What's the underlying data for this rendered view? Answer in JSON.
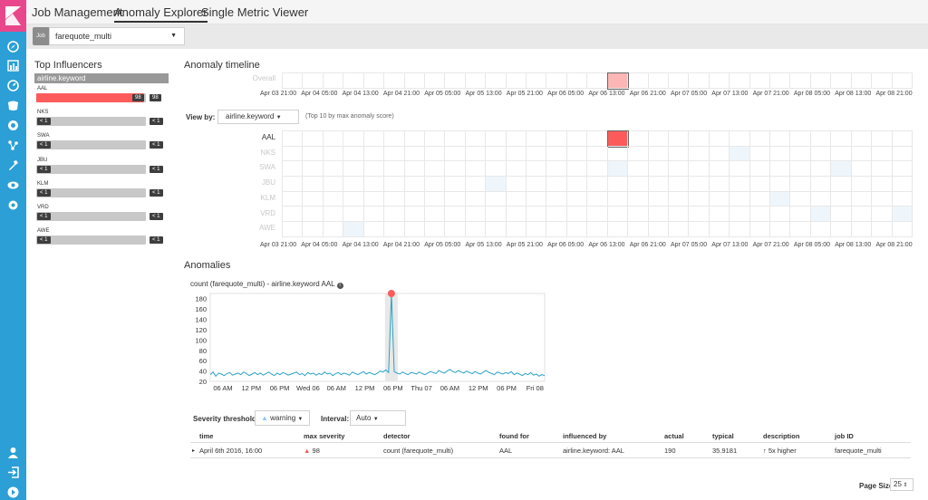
{
  "nav": {
    "icons": [
      "kibana-logo",
      "discover-icon",
      "visualize-icon",
      "dashboard-icon",
      "timelion-icon",
      "machine-learning-icon",
      "graph-icon",
      "dev-tools-icon",
      "monitoring-icon",
      "management-icon",
      "user-icon",
      "logout-icon",
      "collapse-icon"
    ]
  },
  "tabs": [
    {
      "label": "Job Management",
      "active": false
    },
    {
      "label": "Anomaly Explorer",
      "active": true
    },
    {
      "label": "Single Metric Viewer",
      "active": false
    }
  ],
  "job": {
    "badge": "Job",
    "selected": "farequote_multi"
  },
  "influencers": {
    "title": "Top Influencers",
    "field": "airline.keyword",
    "items": [
      {
        "name": "AAL",
        "score_label": "98",
        "max_label": "98",
        "score": 98
      },
      {
        "name": "NKS",
        "score_label": "< 1",
        "max_label": "< 1",
        "score": 0
      },
      {
        "name": "SWA",
        "score_label": "< 1",
        "max_label": "< 1",
        "score": 0
      },
      {
        "name": "JBU",
        "score_label": "< 1",
        "max_label": "< 1",
        "score": 0
      },
      {
        "name": "KLM",
        "score_label": "< 1",
        "max_label": "< 1",
        "score": 0
      },
      {
        "name": "VRD",
        "score_label": "< 1",
        "max_label": "< 1",
        "score": 0
      },
      {
        "name": "AWE",
        "score_label": "< 1",
        "max_label": "< 1",
        "score": 0
      }
    ]
  },
  "timeline": {
    "title": "Anomaly timeline",
    "overall_label": "Overall",
    "ticks": [
      "Apr 03 21:00",
      "Apr 04 05:00",
      "Apr 04 13:00",
      "Apr 04 21:00",
      "Apr 05 05:00",
      "Apr 05 13:00",
      "Apr 05 21:00",
      "Apr 06 05:00",
      "Apr 06 13:00",
      "Apr 06 21:00",
      "Apr 07 05:00",
      "Apr 07 13:00",
      "Apr 07 21:00",
      "Apr 08 05:00",
      "Apr 08 13:00",
      "Apr 08 21:00"
    ],
    "view_by_label": "View by:",
    "view_by_value": "airline.keyword",
    "view_by_note": "(Top 10 by max anomaly score)",
    "lanes": [
      "AAL",
      "NKS",
      "SWA",
      "JBU",
      "KLM",
      "VRD",
      "AWE"
    ]
  },
  "anomalies": {
    "title": "Anomalies",
    "chart_title": "count (farequote_multi) - airline.keyword AAL",
    "severity_label": "Severity threshold:",
    "severity_value": "warning",
    "interval_label": "Interval:",
    "interval_value": "Auto",
    "columns": [
      "time",
      "max severity",
      "detector",
      "found for",
      "influenced by",
      "actual",
      "typical",
      "description",
      "job ID"
    ],
    "row": {
      "time": "April 6th 2016, 16:00",
      "severity": "98",
      "detector": "count (farequote_multi)",
      "found_for": "AAL",
      "influenced_by": "airline.keyword: AAL",
      "actual": "190",
      "typical": "35.9181",
      "description": "5x higher",
      "job_id": "farequote_multi"
    },
    "page_size_label": "Page Size",
    "page_size_value": "25"
  },
  "chart_data": {
    "type": "line",
    "title": "count (farequote_multi) - airline.keyword AAL",
    "x_ticks": [
      "06 AM",
      "12 PM",
      "06 PM",
      "Wed 06",
      "06 AM",
      "12 PM",
      "06 PM",
      "Thu 07",
      "06 AM",
      "12 PM",
      "06 PM",
      "Fri 08"
    ],
    "y_ticks": [
      20,
      40,
      60,
      80,
      100,
      120,
      140,
      160,
      180
    ],
    "ylim": [
      20,
      190
    ],
    "x_index_range": [
      0,
      120
    ],
    "series": [
      {
        "color": "#2ba2c7",
        "values": [
          33,
          38,
          30,
          36,
          34,
          31,
          35,
          37,
          32,
          34,
          36,
          33,
          38,
          35,
          31,
          34,
          37,
          33,
          36,
          32,
          35,
          38,
          34,
          31,
          36,
          33,
          37,
          35,
          32,
          34,
          36,
          38,
          33,
          35,
          31,
          37,
          34,
          36,
          32,
          35,
          33,
          38,
          34,
          36,
          31,
          35,
          37,
          33,
          36,
          34,
          32,
          38,
          35,
          33,
          36,
          39,
          34,
          37,
          35,
          33,
          36,
          40,
          38,
          42,
          37,
          190,
          39,
          36,
          34,
          38,
          35,
          33,
          37,
          36,
          34,
          38,
          35,
          33,
          36,
          39,
          37,
          35,
          41,
          38,
          36,
          40,
          43,
          39,
          37,
          41,
          38,
          36,
          40,
          37,
          35,
          39,
          36,
          34,
          38,
          41,
          37,
          35,
          33,
          38,
          36,
          34,
          37,
          35,
          39,
          33,
          36,
          34,
          31,
          35,
          33,
          37,
          32,
          34,
          30,
          33,
          31
        ]
      }
    ],
    "anomaly": {
      "index": 65,
      "value": 190,
      "color": "#fd5b5b"
    }
  },
  "colors": {
    "nav": "#2b9fd6",
    "logo": "#e8488b",
    "critical": "#fd5b5b",
    "overall_cell": "#fdb6b6",
    "line": "#2ba2c7",
    "faint_cell": "#eef6fb"
  }
}
